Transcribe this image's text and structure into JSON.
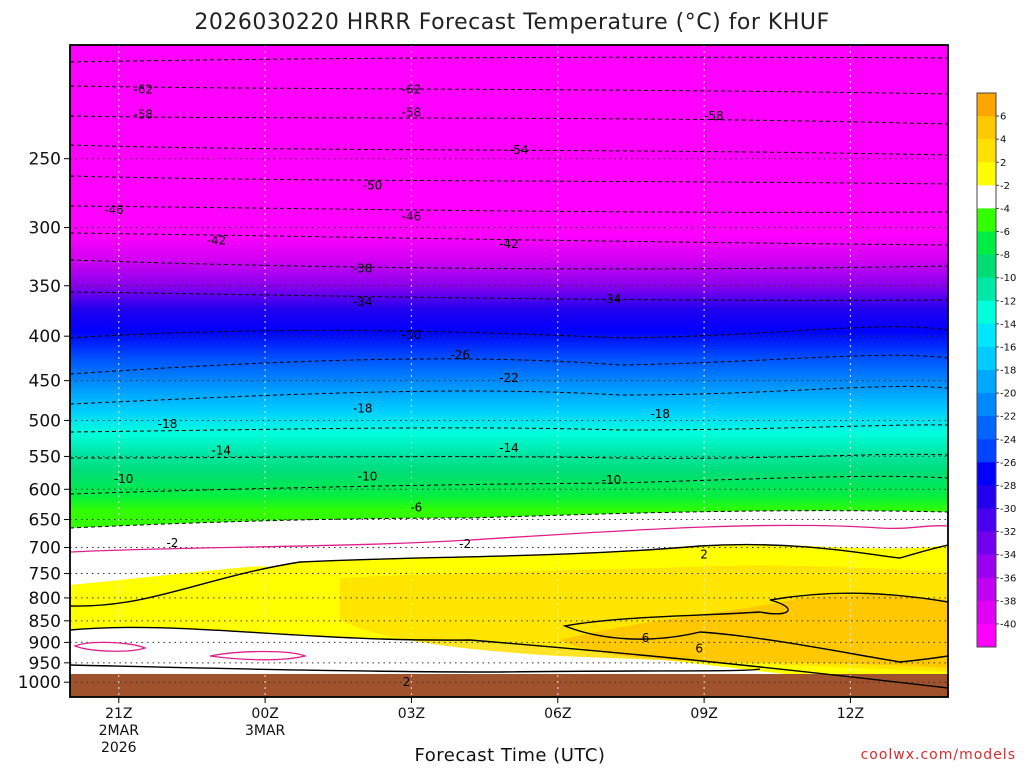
{
  "chart_data": {
    "type": "contour",
    "title": "2026030220 HRRR Forecast Temperature (°C) for KHUF",
    "xlabel": "Forecast Time (UTC)",
    "credit": "coolwx.com/models",
    "y_ticks": [
      "250",
      "300",
      "350",
      "400",
      "450",
      "500",
      "550",
      "600",
      "650",
      "700",
      "750",
      "800",
      "850",
      "900",
      "950",
      "1000"
    ],
    "y_tick_values": [
      250,
      300,
      350,
      400,
      450,
      500,
      550,
      600,
      650,
      700,
      750,
      800,
      850,
      900,
      950,
      1000
    ],
    "x_ticks": [
      {
        "label": "21Z",
        "sub1": "2MAR",
        "sub2": "2026"
      },
      {
        "label": "00Z",
        "sub1": "3MAR",
        "sub2": ""
      },
      {
        "label": "03Z",
        "sub1": "",
        "sub2": ""
      },
      {
        "label": "06Z",
        "sub1": "",
        "sub2": ""
      },
      {
        "label": "09Z",
        "sub1": "",
        "sub2": ""
      },
      {
        "label": "12Z",
        "sub1": "",
        "sub2": ""
      }
    ],
    "x_tick_hours": [
      0,
      3,
      6,
      9,
      12,
      15
    ],
    "x_range_hours": [
      -1,
      17
    ],
    "y_range_hpa": [
      185,
      1040
    ],
    "surface_hpa": 1000,
    "grid": "dotted",
    "colorbar": {
      "ticks": [
        "6",
        "4",
        "2",
        "-2",
        "-4",
        "-6",
        "-8",
        "-10",
        "-12",
        "-14",
        "-16",
        "-18",
        "-20",
        "-22",
        "-24",
        "-26",
        "-28",
        "-30",
        "-32",
        "-34",
        "-36",
        "-38",
        "-40"
      ],
      "colors": [
        "#ffa500",
        "#ffc800",
        "#ffe000",
        "#ffff00",
        "#ffffff",
        "#33ff00",
        "#00ee44",
        "#00dd77",
        "#00e8a8",
        "#00ffdd",
        "#00e6ff",
        "#00ccff",
        "#00a8ff",
        "#0088ff",
        "#0066ff",
        "#0044ff",
        "#0000ff",
        "#2200ee",
        "#4a00ee",
        "#7000ee",
        "#9900ee",
        "#c000f0",
        "#e000f4",
        "#ff00ff"
      ]
    },
    "isotherm_labels": [
      {
        "text": "-62",
        "t": 0.5,
        "p": 208
      },
      {
        "text": "-62",
        "t": 6.0,
        "p": 208
      },
      {
        "text": "-58",
        "t": 0.5,
        "p": 222
      },
      {
        "text": "-58",
        "t": 6.0,
        "p": 221
      },
      {
        "text": "-58",
        "t": 12.2,
        "p": 223
      },
      {
        "text": "-54",
        "t": 8.2,
        "p": 244
      },
      {
        "text": "-50",
        "t": 5.2,
        "p": 268
      },
      {
        "text": "-46",
        "t": -0.1,
        "p": 286
      },
      {
        "text": "-46",
        "t": 6.0,
        "p": 291
      },
      {
        "text": "-42",
        "t": 2.0,
        "p": 310
      },
      {
        "text": "-42",
        "t": 8.0,
        "p": 313
      },
      {
        "text": "-38",
        "t": 5.0,
        "p": 334
      },
      {
        "text": "-34",
        "t": 5.0,
        "p": 365
      },
      {
        "text": "-34",
        "t": 10.1,
        "p": 362
      },
      {
        "text": "-30",
        "t": 6.0,
        "p": 398
      },
      {
        "text": "-26",
        "t": 7.0,
        "p": 420
      },
      {
        "text": "-22",
        "t": 8.0,
        "p": 446
      },
      {
        "text": "-18",
        "t": 5.0,
        "p": 484
      },
      {
        "text": "-18",
        "t": 1.0,
        "p": 504
      },
      {
        "text": "-18",
        "t": 11.1,
        "p": 491
      },
      {
        "text": "-14",
        "t": 2.1,
        "p": 541
      },
      {
        "text": "-14",
        "t": 8.0,
        "p": 537
      },
      {
        "text": "-10",
        "t": 0.1,
        "p": 583
      },
      {
        "text": "-10",
        "t": 5.1,
        "p": 579
      },
      {
        "text": "-10",
        "t": 10.1,
        "p": 585
      },
      {
        "text": "-6",
        "t": 6.1,
        "p": 629
      },
      {
        "text": "-2",
        "t": 1.1,
        "p": 691
      },
      {
        "text": "-2",
        "t": 7.1,
        "p": 693
      },
      {
        "text": "2",
        "t": 12.0,
        "p": 712
      },
      {
        "text": "2",
        "t": 5.9,
        "p": 998
      },
      {
        "text": "6",
        "t": 10.8,
        "p": 888
      },
      {
        "text": "6",
        "t": 11.9,
        "p": 914
      }
    ]
  }
}
